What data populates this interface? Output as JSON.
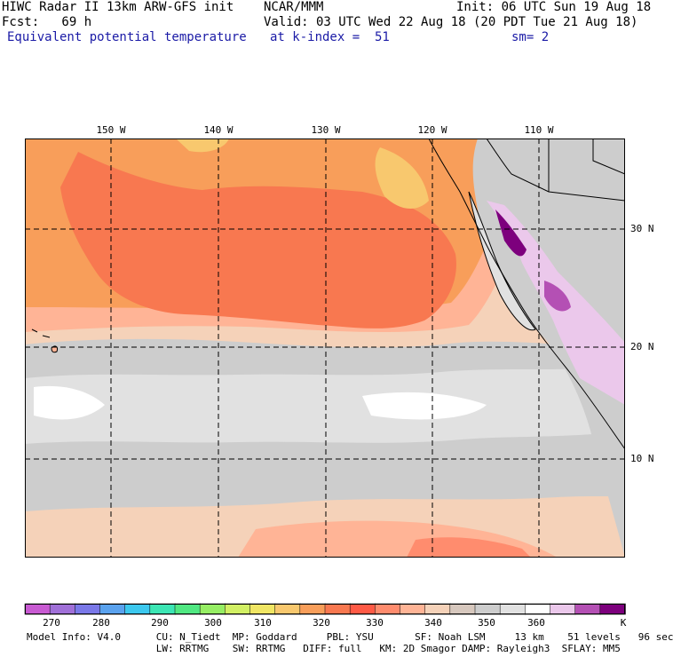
{
  "header": {
    "line1_left": "HIWC Radar II 13km ARW-GFS init",
    "line1_mid": "NCAR/MMM",
    "line1_right": "Init: 06 UTC Sun 19 Aug 18",
    "line2_left": "Fcst:   69 h",
    "line2_right": "Valid: 03 UTC Wed 22 Aug 18 (20 PDT Tue 21 Aug 18)",
    "line3_left": "Equivalent potential temperature",
    "line3_mid": "at k-index =  51",
    "line3_right": "sm= 2"
  },
  "map": {
    "lon_labels": [
      "150 W",
      "140 W",
      "130 W",
      "120 W",
      "110 W"
    ],
    "lat_labels": [
      "30 N",
      "20 N",
      "10 N"
    ]
  },
  "colorbar": {
    "tick_labels": [
      "270",
      "280",
      "290",
      "300",
      "310",
      "320",
      "330",
      "340",
      "350",
      "360",
      "K"
    ],
    "colors": [
      "#c85ad2",
      "#a070d8",
      "#7a78e8",
      "#5aa2ee",
      "#3cc8ee",
      "#3ce6b4",
      "#50e882",
      "#96ee64",
      "#d2f064",
      "#f0e664",
      "#f8c86e",
      "#f89e5a",
      "#f87850",
      "#ff5a46",
      "#ff8c6e",
      "#ffb496",
      "#f5d2b9",
      "#d7c8be",
      "#cdcdcd",
      "#e1e1e1",
      "#ffffff",
      "#ebc8eb",
      "#b450b4",
      "#7d007d"
    ]
  },
  "model_info": {
    "line1": "Model Info: V4.0      CU: N_Tiedt  MP: Goddard     PBL: YSU       SF: Noah LSM     13 km    51 levels   96 sec",
    "line2": "                      LW: RRTMG    SW: RRTMG   DIFF: full   KM: 2D Smagor DAMP: Rayleigh3  SFLAY: MM5"
  }
}
